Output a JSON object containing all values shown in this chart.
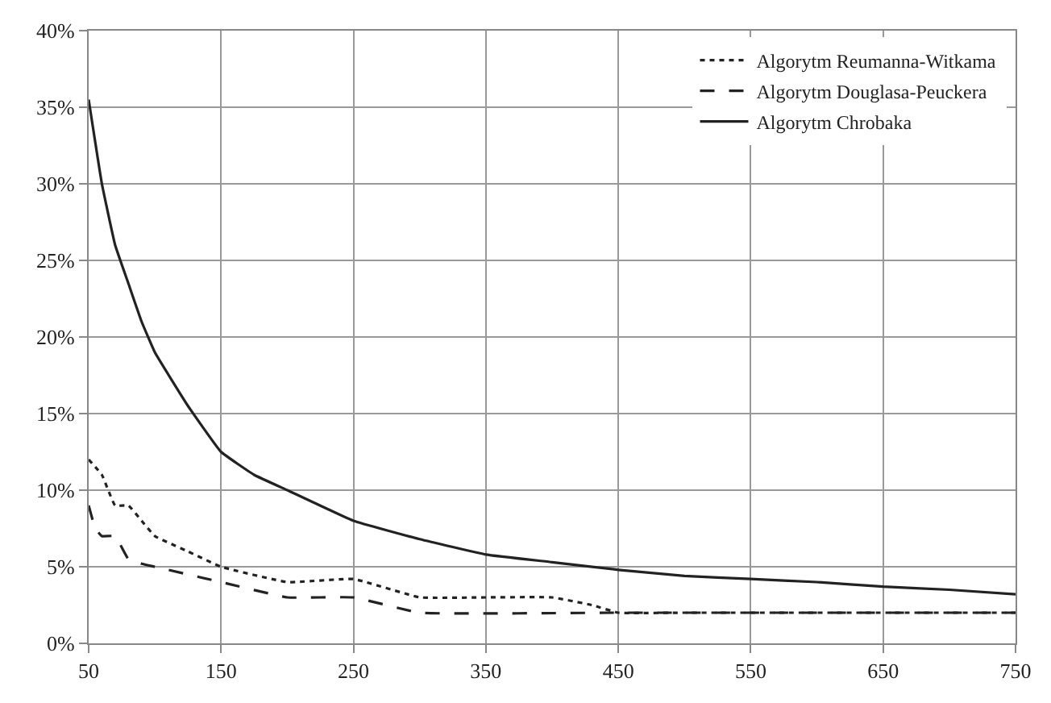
{
  "chart_data": {
    "type": "line",
    "legend": "top right",
    "grid": true,
    "marker": "none",
    "xlim": [
      50,
      750
    ],
    "xticks": [
      50,
      150,
      250,
      350,
      450,
      550,
      650,
      750
    ],
    "ylim": [
      0,
      0.4
    ],
    "yticks": [
      {
        "value": 0,
        "label": "0%"
      },
      {
        "value": 0.05,
        "label": "5%"
      },
      {
        "value": 0.1,
        "label": "10%"
      },
      {
        "value": 0.15,
        "label": "15%"
      },
      {
        "value": 0.2,
        "label": "20%"
      },
      {
        "value": 0.25,
        "label": "25%"
      },
      {
        "value": 0.3,
        "label": "30%"
      },
      {
        "value": 0.35,
        "label": "35%"
      },
      {
        "value": 0.4,
        "label": "40%"
      }
    ],
    "series": [
      {
        "name": "Algorytm Reumanna-Witkama",
        "color": "#222222",
        "line_style": "dotted",
        "x": [
          50,
          60,
          70,
          80,
          90,
          100,
          125,
          150,
          200,
          250,
          300,
          350,
          400,
          430,
          450,
          500,
          600,
          750
        ],
        "values": [
          0.12,
          0.11,
          0.09,
          0.09,
          0.08,
          0.07,
          0.06,
          0.05,
          0.04,
          0.042,
          0.03,
          0.03,
          0.03,
          0.025,
          0.02,
          0.02,
          0.02,
          0.02
        ]
      },
      {
        "name": "Algorytm Douglasa-Peuckera",
        "color": "#222222",
        "line_style": "dashed",
        "x": [
          50,
          55,
          60,
          70,
          80,
          90,
          100,
          150,
          200,
          250,
          300,
          450,
          600,
          750
        ],
        "values": [
          0.09,
          0.075,
          0.07,
          0.07,
          0.055,
          0.052,
          0.05,
          0.04,
          0.03,
          0.03,
          0.02,
          0.02,
          0.02,
          0.02
        ]
      },
      {
        "name": "Algorytm Chrobaka",
        "color": "#222222",
        "line_style": "solid",
        "x": [
          50,
          60,
          70,
          80,
          90,
          100,
          125,
          150,
          175,
          200,
          250,
          300,
          350,
          400,
          450,
          500,
          550,
          600,
          650,
          700,
          750
        ],
        "values": [
          0.355,
          0.3,
          0.26,
          0.235,
          0.21,
          0.19,
          0.155,
          0.125,
          0.11,
          0.1,
          0.08,
          0.068,
          0.058,
          0.053,
          0.048,
          0.044,
          0.042,
          0.04,
          0.037,
          0.035,
          0.032
        ]
      }
    ]
  }
}
